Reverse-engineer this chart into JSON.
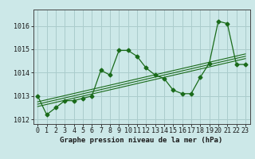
{
  "title": "Graphe pression niveau de la mer (hPa)",
  "bg_color": "#cce8e8",
  "grid_color": "#aacccc",
  "line_color": "#1a6b1a",
  "x_labels": [
    "0",
    "1",
    "2",
    "3",
    "4",
    "5",
    "6",
    "7",
    "8",
    "9",
    "10",
    "11",
    "12",
    "13",
    "14",
    "15",
    "16",
    "17",
    "18",
    "19",
    "20",
    "21",
    "22",
    "23"
  ],
  "hours": [
    0,
    1,
    2,
    3,
    4,
    5,
    6,
    7,
    8,
    9,
    10,
    11,
    12,
    13,
    14,
    15,
    16,
    17,
    18,
    19,
    20,
    21,
    22,
    23
  ],
  "pressure": [
    1013.0,
    1012.2,
    1012.5,
    1012.8,
    1012.8,
    1012.9,
    1013.0,
    1014.1,
    1013.9,
    1014.95,
    1014.95,
    1014.7,
    1014.2,
    1013.9,
    1013.75,
    1013.25,
    1013.1,
    1013.1,
    1013.8,
    1014.4,
    1016.2,
    1016.1,
    1014.35,
    1014.35
  ],
  "trend_lines": [
    [
      0,
      1012.55,
      23,
      1014.6
    ],
    [
      0,
      1012.65,
      23,
      1014.7
    ],
    [
      0,
      1012.75,
      23,
      1014.8
    ]
  ],
  "ylim": [
    1011.8,
    1016.7
  ],
  "yticks": [
    1012,
    1013,
    1014,
    1015,
    1016
  ],
  "title_fontsize": 6.5,
  "tick_fontsize": 6.0
}
